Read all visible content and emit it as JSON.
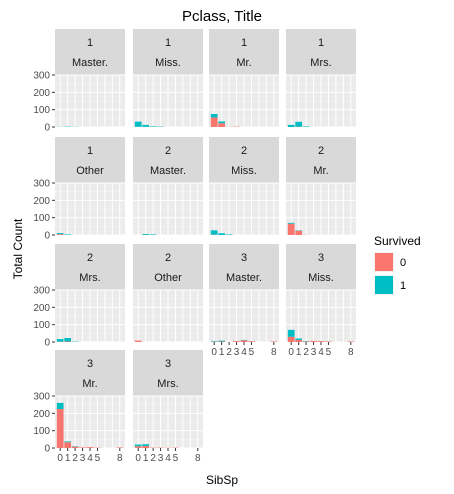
{
  "chart_data": {
    "type": "bar",
    "title": "Pclass, Title",
    "xlabel": "SibSp",
    "ylabel": "Total Count",
    "x_values": [
      0,
      1,
      2,
      3,
      4,
      5,
      6,
      7,
      8
    ],
    "x_tick_labels": [
      "0",
      "1",
      "2",
      "3",
      "4",
      "5",
      "8"
    ],
    "x_tick_values": [
      0,
      1,
      2,
      3,
      4,
      5,
      8
    ],
    "ylim": [
      0,
      300
    ],
    "y_ticks": [
      0,
      100,
      200,
      300
    ],
    "legend": {
      "title": "Survived",
      "placement": "right",
      "entries": [
        {
          "label": "0",
          "color": "#F8766D"
        },
        {
          "label": "1",
          "color": "#00BFC4"
        }
      ]
    },
    "stacked": true,
    "colors": {
      "0": "#F8766D",
      "1": "#00BFC4"
    },
    "panels": [
      {
        "pclass": "1",
        "title": "Master.",
        "bars": [
          {
            "sibsp": 0,
            "died": 0,
            "survived": 1
          },
          {
            "sibsp": 1,
            "died": 0,
            "survived": 2
          },
          {
            "sibsp": 2,
            "died": 0,
            "survived": 1
          }
        ]
      },
      {
        "pclass": "1",
        "title": "Miss.",
        "bars": [
          {
            "sibsp": 0,
            "died": 1,
            "survived": 30
          },
          {
            "sibsp": 1,
            "died": 1,
            "survived": 11
          },
          {
            "sibsp": 2,
            "died": 0,
            "survived": 3
          },
          {
            "sibsp": 3,
            "died": 0,
            "survived": 2
          }
        ]
      },
      {
        "pclass": "1",
        "title": "Mr.",
        "bars": [
          {
            "sibsp": 0,
            "died": 55,
            "survived": 20
          },
          {
            "sibsp": 1,
            "died": 22,
            "survived": 10
          },
          {
            "sibsp": 2,
            "died": 1,
            "survived": 0
          },
          {
            "sibsp": 3,
            "died": 2,
            "survived": 0
          }
        ]
      },
      {
        "pclass": "1",
        "title": "Mrs.",
        "bars": [
          {
            "sibsp": 0,
            "died": 0,
            "survived": 12
          },
          {
            "sibsp": 1,
            "died": 2,
            "survived": 28
          },
          {
            "sibsp": 2,
            "died": 0,
            "survived": 3
          }
        ]
      },
      {
        "pclass": "1",
        "title": "Other",
        "bars": [
          {
            "sibsp": 0,
            "died": 5,
            "survived": 6
          },
          {
            "sibsp": 1,
            "died": 0,
            "survived": 3
          }
        ]
      },
      {
        "pclass": "2",
        "title": "Master.",
        "bars": [
          {
            "sibsp": 1,
            "died": 0,
            "survived": 5
          },
          {
            "sibsp": 2,
            "died": 0,
            "survived": 3
          }
        ]
      },
      {
        "pclass": "2",
        "title": "Miss.",
        "bars": [
          {
            "sibsp": 0,
            "died": 2,
            "survived": 25
          },
          {
            "sibsp": 1,
            "died": 0,
            "survived": 10
          },
          {
            "sibsp": 2,
            "died": 0,
            "survived": 3
          }
        ]
      },
      {
        "pclass": "2",
        "title": "Mr.",
        "bars": [
          {
            "sibsp": 0,
            "died": 65,
            "survived": 5
          },
          {
            "sibsp": 1,
            "died": 25,
            "survived": 2
          },
          {
            "sibsp": 2,
            "died": 1,
            "survived": 0
          }
        ]
      },
      {
        "pclass": "2",
        "title": "Mrs.",
        "bars": [
          {
            "sibsp": 0,
            "died": 2,
            "survived": 15
          },
          {
            "sibsp": 1,
            "died": 3,
            "survived": 20
          },
          {
            "sibsp": 2,
            "died": 0,
            "survived": 2
          }
        ]
      },
      {
        "pclass": "2",
        "title": "Other",
        "bars": [
          {
            "sibsp": 0,
            "died": 8,
            "survived": 0
          }
        ]
      },
      {
        "pclass": "3",
        "title": "Master.",
        "bars": [
          {
            "sibsp": 0,
            "died": 2,
            "survived": 3
          },
          {
            "sibsp": 1,
            "died": 3,
            "survived": 5
          },
          {
            "sibsp": 3,
            "died": 5,
            "survived": 0
          },
          {
            "sibsp": 4,
            "died": 10,
            "survived": 2
          },
          {
            "sibsp": 5,
            "died": 4,
            "survived": 0
          },
          {
            "sibsp": 8,
            "died": 3,
            "survived": 0
          }
        ]
      },
      {
        "pclass": "3",
        "title": "Miss.",
        "bars": [
          {
            "sibsp": 0,
            "died": 30,
            "survived": 40
          },
          {
            "sibsp": 1,
            "died": 12,
            "survived": 8
          },
          {
            "sibsp": 2,
            "died": 3,
            "survived": 2
          },
          {
            "sibsp": 3,
            "died": 6,
            "survived": 0
          },
          {
            "sibsp": 4,
            "died": 5,
            "survived": 0
          },
          {
            "sibsp": 5,
            "died": 3,
            "survived": 0
          },
          {
            "sibsp": 8,
            "died": 3,
            "survived": 0
          }
        ]
      },
      {
        "pclass": "3",
        "title": "Mr.",
        "bars": [
          {
            "sibsp": 0,
            "died": 225,
            "survived": 35
          },
          {
            "sibsp": 1,
            "died": 33,
            "survived": 5
          },
          {
            "sibsp": 2,
            "died": 8,
            "survived": 2
          },
          {
            "sibsp": 3,
            "died": 3,
            "survived": 0
          },
          {
            "sibsp": 4,
            "died": 5,
            "survived": 0
          },
          {
            "sibsp": 5,
            "died": 2,
            "survived": 0
          },
          {
            "sibsp": 8,
            "died": 3,
            "survived": 0
          }
        ]
      },
      {
        "pclass": "3",
        "title": "Mrs.",
        "bars": [
          {
            "sibsp": 0,
            "died": 10,
            "survived": 10
          },
          {
            "sibsp": 1,
            "died": 12,
            "survived": 10
          },
          {
            "sibsp": 2,
            "died": 2,
            "survived": 0
          },
          {
            "sibsp": 3,
            "died": 2,
            "survived": 0
          },
          {
            "sibsp": 4,
            "died": 1,
            "survived": 0
          },
          {
            "sibsp": 5,
            "died": 2,
            "survived": 0
          }
        ]
      }
    ]
  }
}
